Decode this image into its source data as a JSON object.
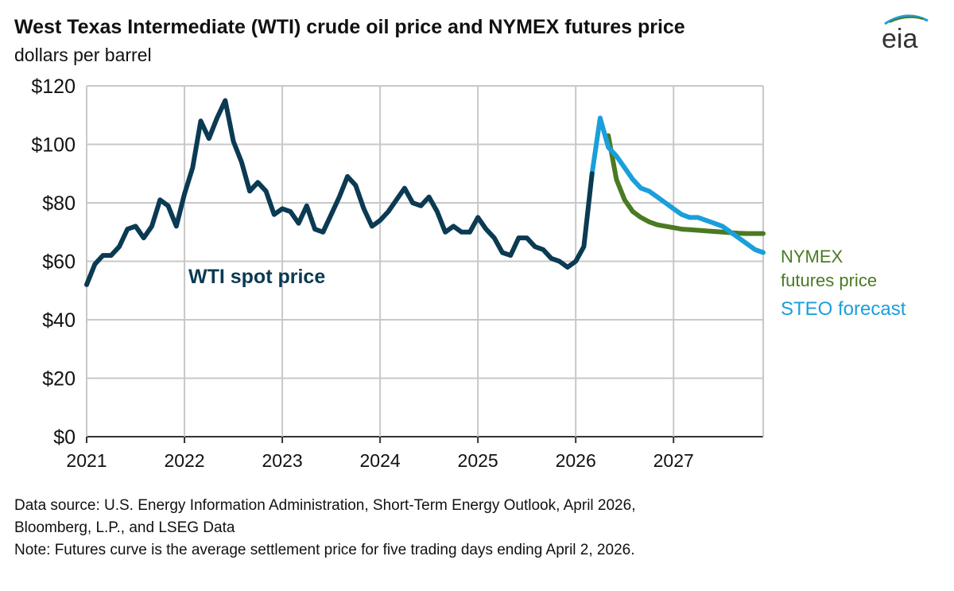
{
  "chart_data": {
    "type": "line",
    "title": "West Texas Intermediate (WTI) crude oil price and NYMEX futures price",
    "subtitle": "dollars per barrel",
    "xlabel": "",
    "ylabel": "",
    "ylim": [
      0,
      120
    ],
    "xlim": [
      "2021-01",
      "2027-12"
    ],
    "y_ticks": [
      "$0",
      "$20",
      "$40",
      "$60",
      "$80",
      "$100",
      "$120"
    ],
    "x_ticks": [
      "2021",
      "2022",
      "2023",
      "2024",
      "2025",
      "2026",
      "2027"
    ],
    "grid": true,
    "series": [
      {
        "name": "WTI spot price",
        "color": "#0b3a53",
        "start": "2021-01",
        "values": [
          52,
          59,
          62,
          62,
          65,
          71,
          72,
          68,
          72,
          81,
          79,
          72,
          83,
          92,
          108,
          102,
          109,
          115,
          101,
          94,
          84,
          87,
          84,
          76,
          78,
          77,
          73,
          79,
          71,
          70,
          76,
          82,
          89,
          86,
          78,
          72,
          74,
          77,
          81,
          85,
          80,
          79,
          82,
          77,
          70,
          72,
          70,
          70,
          75,
          71,
          68,
          63,
          62,
          68,
          68,
          65,
          64,
          61,
          60,
          58,
          60,
          65,
          90
        ]
      },
      {
        "name": "STEO forecast",
        "color": "#1a9fdb",
        "start": "2026-03",
        "values": [
          90,
          109,
          99,
          96,
          92,
          88,
          85,
          84,
          82,
          80,
          78,
          76,
          75,
          75,
          74,
          73,
          72,
          70,
          68,
          66,
          64,
          63
        ]
      },
      {
        "name": "NYMEX futures price",
        "color": "#4a7a22",
        "start": "2026-05",
        "values": [
          103,
          88,
          81,
          77,
          75,
          73.5,
          72.5,
          72,
          71.5,
          71,
          70.8,
          70.6,
          70.4,
          70.2,
          70,
          69.8,
          69.6,
          69.5,
          69.5,
          69.5
        ]
      }
    ],
    "annotations": {
      "spot_label": "WTI spot price",
      "nymex_label_1": "NYMEX",
      "nymex_label_2": "futures price",
      "steo_label": "STEO forecast"
    }
  },
  "logo_text": "eia",
  "notes": {
    "source_1": "Data source: U.S. Energy Information Administration,  Short-Term Energy Outlook, April 2026,",
    "source_2": "Bloomberg, L.P., and LSEG Data",
    "note": "Note: Futures curve is the average settlement price for five trading days ending April 2, 2026."
  }
}
